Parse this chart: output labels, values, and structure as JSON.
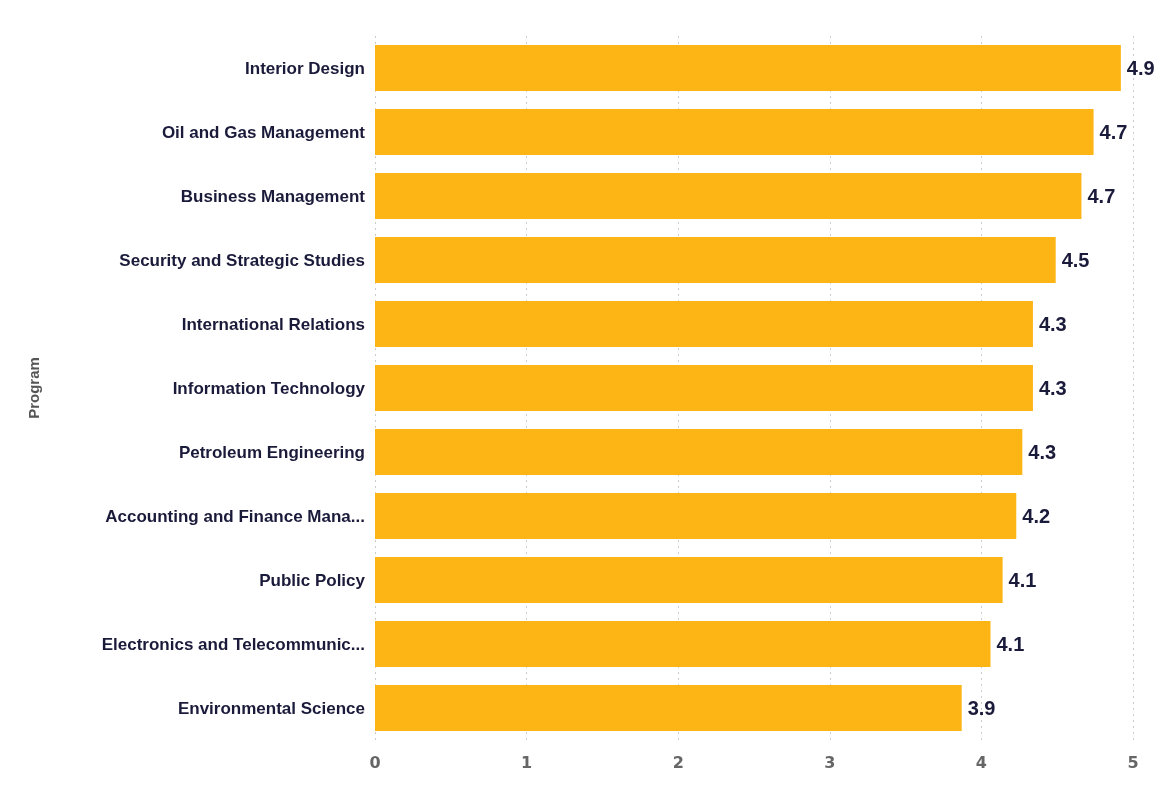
{
  "chart_data": {
    "type": "bar",
    "orientation": "horizontal",
    "ylabel": "Program",
    "categories": [
      "Interior Design",
      "Oil and Gas Management",
      "Business Management",
      "Security and Strategic Studies",
      "International Relations",
      "Information Technology",
      "Petroleum Engineering",
      "Accounting and Finance Mana...",
      "Public Policy",
      "Electronics and Telecommunic...",
      "Environmental Science"
    ],
    "values": [
      4.92,
      4.74,
      4.66,
      4.49,
      4.34,
      4.34,
      4.27,
      4.23,
      4.14,
      4.06,
      3.87
    ],
    "value_labels": [
      "4.9",
      "4.7",
      "4.7",
      "4.5",
      "4.3",
      "4.3",
      "4.3",
      "4.2",
      "4.1",
      "4.1",
      "3.9"
    ],
    "color": "#fdb515",
    "xlim": [
      0,
      5
    ],
    "xticks": [
      0,
      1,
      2,
      3,
      4,
      5
    ],
    "grid": "x"
  }
}
